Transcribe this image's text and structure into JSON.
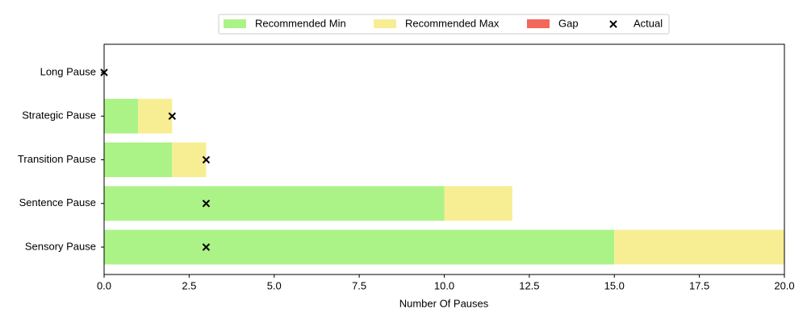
{
  "chart_data": {
    "type": "stacked-bar-marker",
    "x_label": "Number Of Pauses",
    "categories": [
      "Sensory Pause",
      "Sentence Pause",
      "Transition Pause",
      "Strategic Pause",
      "Long Pause"
    ],
    "series": [
      {
        "name": "Recommended Min",
        "color": "#abf387",
        "values": [
          15,
          10,
          2,
          1,
          0
        ]
      },
      {
        "name": "Recommended Max",
        "color": "#f7ee94",
        "values": [
          5,
          2,
          1,
          1,
          0
        ]
      },
      {
        "name": "Gap",
        "color": "#f2685c",
        "values": [
          0,
          0,
          0,
          0,
          0
        ]
      }
    ],
    "markers": {
      "name": "Actual",
      "color": "#000000",
      "values": [
        3,
        3,
        3,
        2,
        0
      ]
    },
    "xlim": [
      0,
      20
    ],
    "xticks": [
      {
        "value": 0,
        "label": "0.0"
      },
      {
        "value": 2.5,
        "label": "2.5"
      },
      {
        "value": 5,
        "label": "5.0"
      },
      {
        "value": 7.5,
        "label": "7.5"
      },
      {
        "value": 10,
        "label": "10.0"
      },
      {
        "value": 12.5,
        "label": "12.5"
      },
      {
        "value": 15,
        "label": "15.0"
      },
      {
        "value": 17.5,
        "label": "17.5"
      },
      {
        "value": 20,
        "label": "20.0"
      }
    ],
    "legend": "top"
  }
}
